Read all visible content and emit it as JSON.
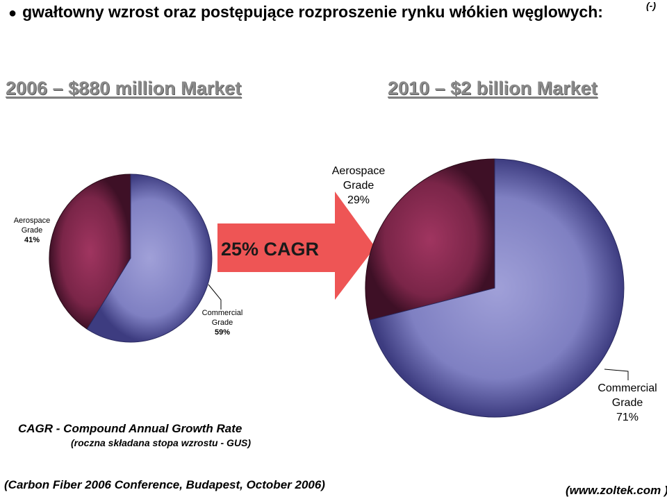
{
  "header": {
    "bullet_text": "gwałtowny wzrost oraz postępujące rozproszenie rynku włókien węglowych:",
    "ref_mark": "(-)"
  },
  "arrow": {
    "label": "25% CAGR",
    "color": "#ee5555"
  },
  "notes": {
    "cagr_definition": "CAGR - Compound Annual Growth Rate",
    "cagr_polish": "(roczna składana stopa wzrostu - GUS)",
    "source": "(Carbon Fiber 2006 Conference, Budapest, October 2006)",
    "website": "(www.zoltek.com )"
  },
  "chart_data": [
    {
      "type": "pie",
      "title": "2006 – $880 million Market",
      "slices": [
        {
          "label_line1": "Aerospace",
          "label_line2": "Grade",
          "pct_label": "41%",
          "value": 41,
          "color": "#7a2548"
        },
        {
          "label_line1": "Commercial",
          "label_line2": "Grade",
          "pct_label": "59%",
          "value": 59,
          "color": "#8080c0"
        }
      ]
    },
    {
      "type": "pie",
      "title": "2010 – $2 billion Market",
      "slices": [
        {
          "label_line1": "Aerospace",
          "label_line2": "Grade",
          "pct_label": "29%",
          "value": 29,
          "color": "#7a2548"
        },
        {
          "label_line1": "Commercial",
          "label_line2": "Grade",
          "pct_label": "71%",
          "value": 71,
          "color": "#8080c0"
        }
      ]
    }
  ]
}
